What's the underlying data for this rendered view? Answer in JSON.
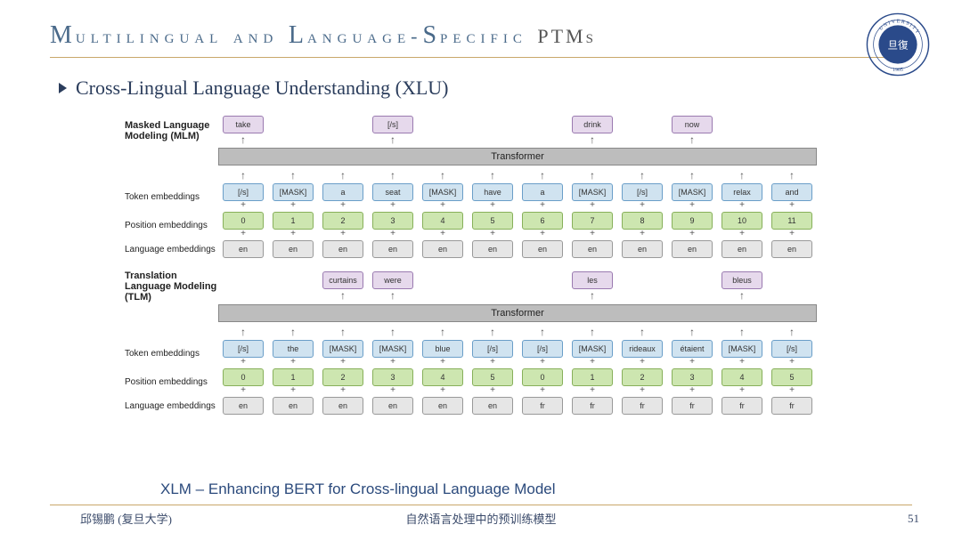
{
  "header": {
    "title_part1_cap": "M",
    "title_part1": "ultilingual and ",
    "title_part2_cap": "L",
    "title_part2": "anguage-",
    "title_part3_cap": "S",
    "title_part3": "pecific ",
    "title_tail": "PTMs"
  },
  "subtitle": "Cross-Lingual Language Understanding (XLU)",
  "diagram": {
    "colors": {
      "purple": "#e6d9ec",
      "blue": "#d0e3f0",
      "green": "#cde6b0",
      "grey": "#e6e6e6",
      "transformer": "#bdbdbd"
    },
    "mlm": {
      "label": "Masked Language Modeling (MLM)",
      "outputs": [
        "take",
        "",
        "",
        "[/s]",
        "",
        "",
        "",
        "drink",
        "",
        "now",
        "",
        ""
      ],
      "transformer": "Transformer",
      "rows": [
        {
          "label": "Token embeddings",
          "cls": "blue",
          "vals": [
            "[/s]",
            "[MASK]",
            "a",
            "seat",
            "[MASK]",
            "have",
            "a",
            "[MASK]",
            "[/s]",
            "[MASK]",
            "relax",
            "and"
          ]
        },
        {
          "label": "Position embeddings",
          "cls": "green",
          "vals": [
            "0",
            "1",
            "2",
            "3",
            "4",
            "5",
            "6",
            "7",
            "8",
            "9",
            "10",
            "11"
          ]
        },
        {
          "label": "Language embeddings",
          "cls": "grey",
          "vals": [
            "en",
            "en",
            "en",
            "en",
            "en",
            "en",
            "en",
            "en",
            "en",
            "en",
            "en",
            "en"
          ]
        }
      ]
    },
    "tlm": {
      "label": "Translation Language Modeling (TLM)",
      "outputs": [
        "",
        "",
        "curtains",
        "were",
        "",
        "",
        "",
        "les",
        "",
        "",
        "bleus",
        ""
      ],
      "transformer": "Transformer",
      "rows": [
        {
          "label": "Token embeddings",
          "cls": "blue",
          "vals": [
            "[/s]",
            "the",
            "[MASK]",
            "[MASK]",
            "blue",
            "[/s]",
            "[/s]",
            "[MASK]",
            "rideaux",
            "étaient",
            "[MASK]",
            "[/s]"
          ]
        },
        {
          "label": "Position embeddings",
          "cls": "green",
          "vals": [
            "0",
            "1",
            "2",
            "3",
            "4",
            "5",
            "0",
            "1",
            "2",
            "3",
            "4",
            "5"
          ]
        },
        {
          "label": "Language embeddings",
          "cls": "grey",
          "vals": [
            "en",
            "en",
            "en",
            "en",
            "en",
            "en",
            "fr",
            "fr",
            "fr",
            "fr",
            "fr",
            "fr"
          ]
        }
      ]
    }
  },
  "caption": "XLM – Enhancing BERT for Cross-lingual Language Model",
  "footer": {
    "left": "邱锡鹏 (复旦大学)",
    "center": "自然语言处理中的预训练模型",
    "page": "51"
  },
  "logo": {
    "outer_text": "UNIVERSITY",
    "inner_text": "旦復",
    "year": "1905"
  }
}
